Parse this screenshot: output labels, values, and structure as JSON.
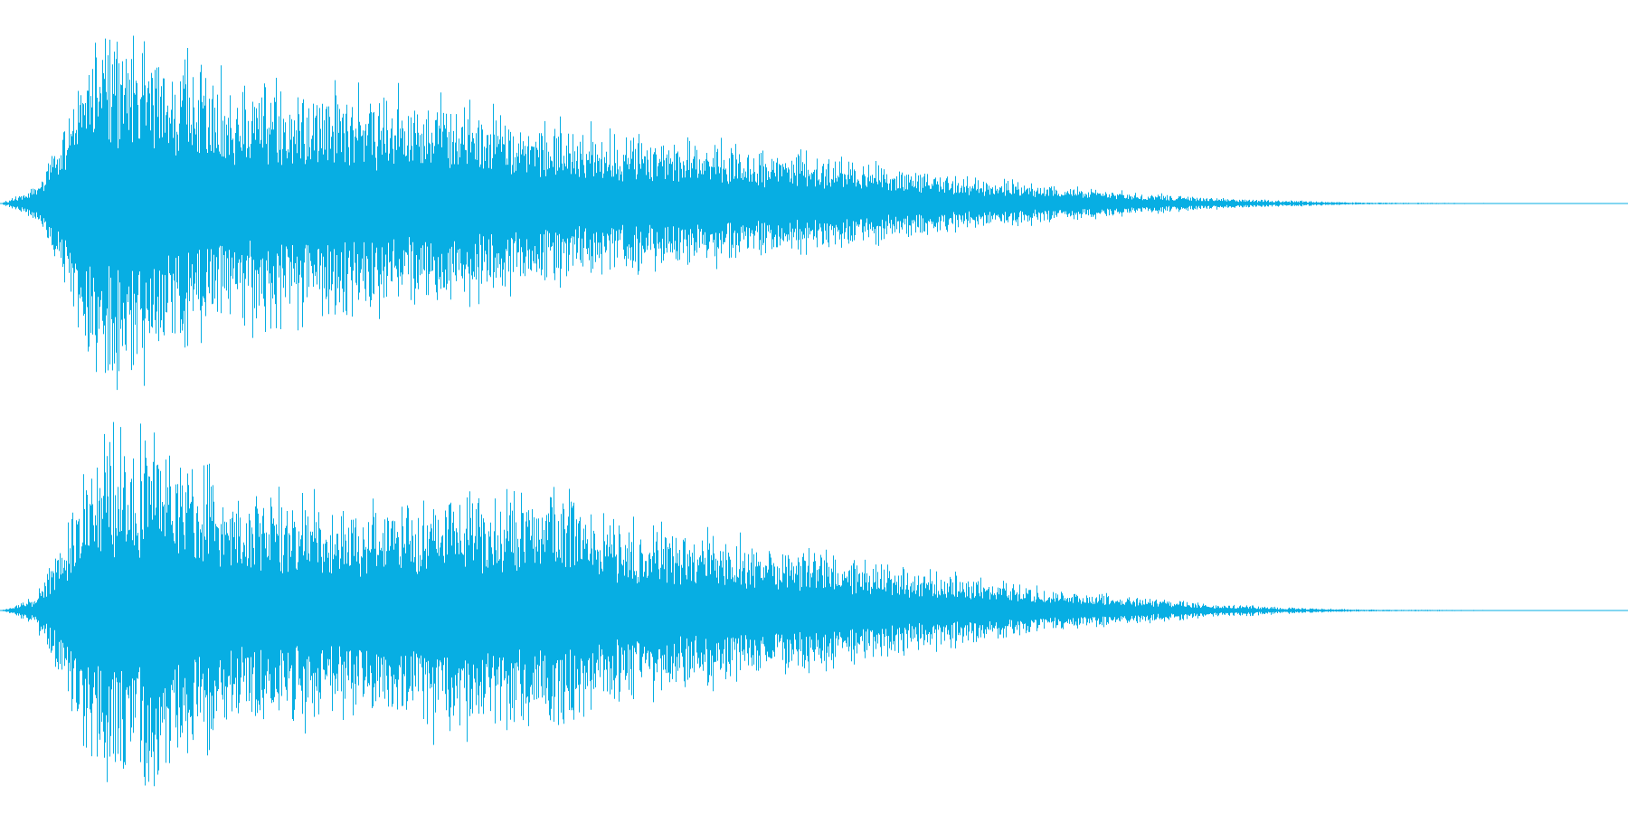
{
  "waveform": {
    "color": "#07AEE3",
    "background": "#FFFFFF",
    "channels": [
      {
        "name": "",
        "envelope_peaks": [
          [
            0.0,
            0.0
          ],
          [
            0.02,
            0.08
          ],
          [
            0.035,
            0.35
          ],
          [
            0.05,
            0.82
          ],
          [
            0.07,
            1.0
          ],
          [
            0.09,
            0.95
          ],
          [
            0.12,
            0.78
          ],
          [
            0.15,
            0.7
          ],
          [
            0.18,
            0.66
          ],
          [
            0.22,
            0.63
          ],
          [
            0.26,
            0.6
          ],
          [
            0.29,
            0.55
          ],
          [
            0.32,
            0.46
          ],
          [
            0.37,
            0.42
          ],
          [
            0.42,
            0.35
          ],
          [
            0.46,
            0.32
          ],
          [
            0.5,
            0.28
          ],
          [
            0.55,
            0.2
          ],
          [
            0.6,
            0.14
          ],
          [
            0.65,
            0.1
          ],
          [
            0.7,
            0.06
          ],
          [
            0.75,
            0.03
          ],
          [
            0.8,
            0.015
          ],
          [
            0.84,
            0.005
          ],
          [
            1.0,
            0.0
          ]
        ]
      },
      {
        "name": "",
        "envelope_peaks": [
          [
            0.0,
            0.0
          ],
          [
            0.02,
            0.07
          ],
          [
            0.035,
            0.33
          ],
          [
            0.05,
            0.8
          ],
          [
            0.07,
            0.98
          ],
          [
            0.09,
            1.0
          ],
          [
            0.12,
            0.78
          ],
          [
            0.15,
            0.66
          ],
          [
            0.19,
            0.62
          ],
          [
            0.24,
            0.6
          ],
          [
            0.27,
            0.7
          ],
          [
            0.31,
            0.72
          ],
          [
            0.35,
            0.66
          ],
          [
            0.38,
            0.5
          ],
          [
            0.42,
            0.44
          ],
          [
            0.46,
            0.4
          ],
          [
            0.5,
            0.33
          ],
          [
            0.55,
            0.25
          ],
          [
            0.6,
            0.18
          ],
          [
            0.65,
            0.12
          ],
          [
            0.7,
            0.07
          ],
          [
            0.75,
            0.035
          ],
          [
            0.8,
            0.015
          ],
          [
            0.84,
            0.005
          ],
          [
            1.0,
            0.0
          ]
        ]
      }
    ]
  }
}
